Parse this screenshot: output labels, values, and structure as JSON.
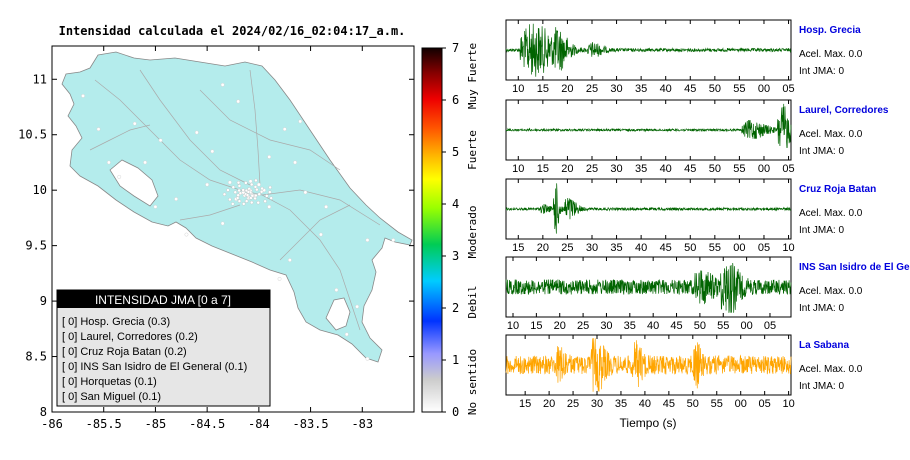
{
  "map": {
    "title": "Intensidad calculada el 2024/02/16_02:04:17_a.m.",
    "xlim": [
      -86,
      -82.5
    ],
    "ylim": [
      8,
      11.3
    ],
    "x_ticks": [
      "-86",
      "-85.5",
      "-85",
      "-84.5",
      "-84",
      "-83.5",
      "-83"
    ],
    "y_ticks": [
      "8",
      "8.5",
      "9",
      "9.5",
      "10",
      "10.5",
      "11"
    ],
    "land_color": "#b4ecec",
    "stations": [
      [
        -84.28,
        10.07
      ],
      [
        -83.6,
        10.62
      ],
      [
        -84.1,
        9.93
      ],
      [
        -83.7,
        9.37
      ],
      [
        -82.95,
        8.48
      ],
      [
        -84.05,
        9.95
      ],
      [
        -85.35,
        10.12
      ],
      [
        -85.1,
        10.25
      ],
      [
        -84.6,
        10.52
      ],
      [
        -83.9,
        9.85
      ],
      [
        -84.35,
        9.7
      ],
      [
        -83.25,
        9.1
      ],
      [
        -84.8,
        9.92
      ],
      [
        -85.55,
        10.55
      ],
      [
        -83.9,
        10.3
      ],
      [
        -84.2,
        10.8
      ],
      [
        -83.55,
        9.98
      ],
      [
        -83.15,
        8.7
      ],
      [
        -85.2,
        10.6
      ],
      [
        -84.45,
        10.35
      ],
      [
        -83.4,
        9.6
      ],
      [
        -84.0,
        10.05
      ],
      [
        -84.15,
        9.98
      ],
      [
        -83.95,
        10.0
      ],
      [
        -84.22,
        9.92
      ],
      [
        -84.08,
        10.08
      ],
      [
        -83.05,
        8.95
      ],
      [
        -85.7,
        10.85
      ],
      [
        -84.7,
        9.6
      ],
      [
        -83.65,
        10.25
      ],
      [
        -82.95,
        9.55
      ],
      [
        -84.5,
        10.05
      ],
      [
        -83.8,
        9.2
      ],
      [
        -85.0,
        9.85
      ],
      [
        -84.35,
        10.95
      ],
      [
        -83.35,
        9.85
      ],
      [
        -82.7,
        9.55
      ],
      [
        -84.95,
        10.45
      ],
      [
        -85.45,
        10.25
      ],
      [
        -83.75,
        10.55
      ]
    ]
  },
  "colorbar": {
    "ticks": [
      "0",
      "1",
      "2",
      "3",
      "4",
      "5",
      "6",
      "7"
    ],
    "labels": [
      "No sentido",
      "Debil",
      "Moderado",
      "Fuerte",
      "Muy Fuerte"
    ]
  },
  "legend": {
    "title": "INTENSIDAD JMA [0 a 7]",
    "items": [
      "[ 0]  Hosp. Grecia (0.3)",
      "[ 0]  Laurel, Corredores (0.2)",
      "[ 0]  Cruz Roja Batan (0.2)",
      "[ 0]  INS San Isidro de El General (0.1)",
      "[ 0]  Horquetas (0.1)",
      "[ 0]  San Miguel (0.1)"
    ]
  },
  "traces": [
    {
      "name": "Hosp. Grecia",
      "accel": "Acel. Max. 0.0",
      "int": "Int JMA: 0",
      "color": "#006400",
      "name_color": "#0000dd",
      "ticks": [
        "10",
        "15",
        "20",
        "25",
        "30",
        "35",
        "40",
        "45",
        "50",
        "55",
        "00",
        "05"
      ],
      "start": 7.5,
      "span": 58,
      "bursts": [
        [
          12.5,
          7,
          1.0
        ],
        [
          18,
          3,
          0.5
        ],
        [
          25,
          3,
          0.25
        ]
      ],
      "noise": 0.06
    },
    {
      "name": "Laurel, Corredores",
      "accel": "Acel. Max. 0.0",
      "int": "Int JMA: 0",
      "color": "#006400",
      "name_color": "#0000dd",
      "ticks": [
        "10",
        "15",
        "20",
        "25",
        "30",
        "35",
        "40",
        "45",
        "50",
        "55",
        "00",
        "05"
      ],
      "start": 7.5,
      "span": 58,
      "bursts": [
        [
          57,
          5,
          0.35
        ],
        [
          63.5,
          2.5,
          1.0
        ]
      ],
      "noise": 0.04
    },
    {
      "name": "Cruz Roja Batan",
      "accel": "Acel. Max. 0.0",
      "int": "Int JMA: 0",
      "color": "#006400",
      "name_color": "#0000dd",
      "ticks": [
        "15",
        "20",
        "25",
        "30",
        "35",
        "40",
        "45",
        "50",
        "55",
        "00",
        "05",
        "10"
      ],
      "start": 12.5,
      "span": 58,
      "bursts": [
        [
          22.5,
          1.2,
          1.0
        ],
        [
          25,
          2.5,
          0.45
        ],
        [
          20,
          2,
          0.15
        ]
      ],
      "noise": 0.05
    },
    {
      "name": "INS San Isidro de El Ge",
      "accel": "Acel. Max. 0.0",
      "int": "Int JMA: 0",
      "color": "#006400",
      "name_color": "#0000dd",
      "ticks": [
        "10",
        "15",
        "20",
        "25",
        "30",
        "35",
        "40",
        "45",
        "50",
        "55",
        "00",
        "05",
        "10"
      ],
      "start": 8.5,
      "span": 61,
      "bursts": [
        [
          55.5,
          3.5,
          1.0
        ],
        [
          50,
          4,
          0.45
        ]
      ],
      "noise": 0.28
    },
    {
      "name": "La Sabana",
      "accel": "Acel. Max. 0.0",
      "int": "Int JMA: 0",
      "color": "#ffa500",
      "name_color": "#0000dd",
      "ticks": [
        "15",
        "20",
        "25",
        "30",
        "35",
        "40",
        "45",
        "50",
        "55",
        "00",
        "05",
        "10"
      ],
      "start": 11,
      "span": 59.5,
      "bursts": [
        [
          29.5,
          2.5,
          1.0
        ],
        [
          38,
          2,
          0.6
        ],
        [
          50.5,
          1.5,
          0.7
        ],
        [
          22,
          2,
          0.45
        ]
      ],
      "noise": 0.35
    }
  ],
  "xlabel": "Tiempo (s)"
}
